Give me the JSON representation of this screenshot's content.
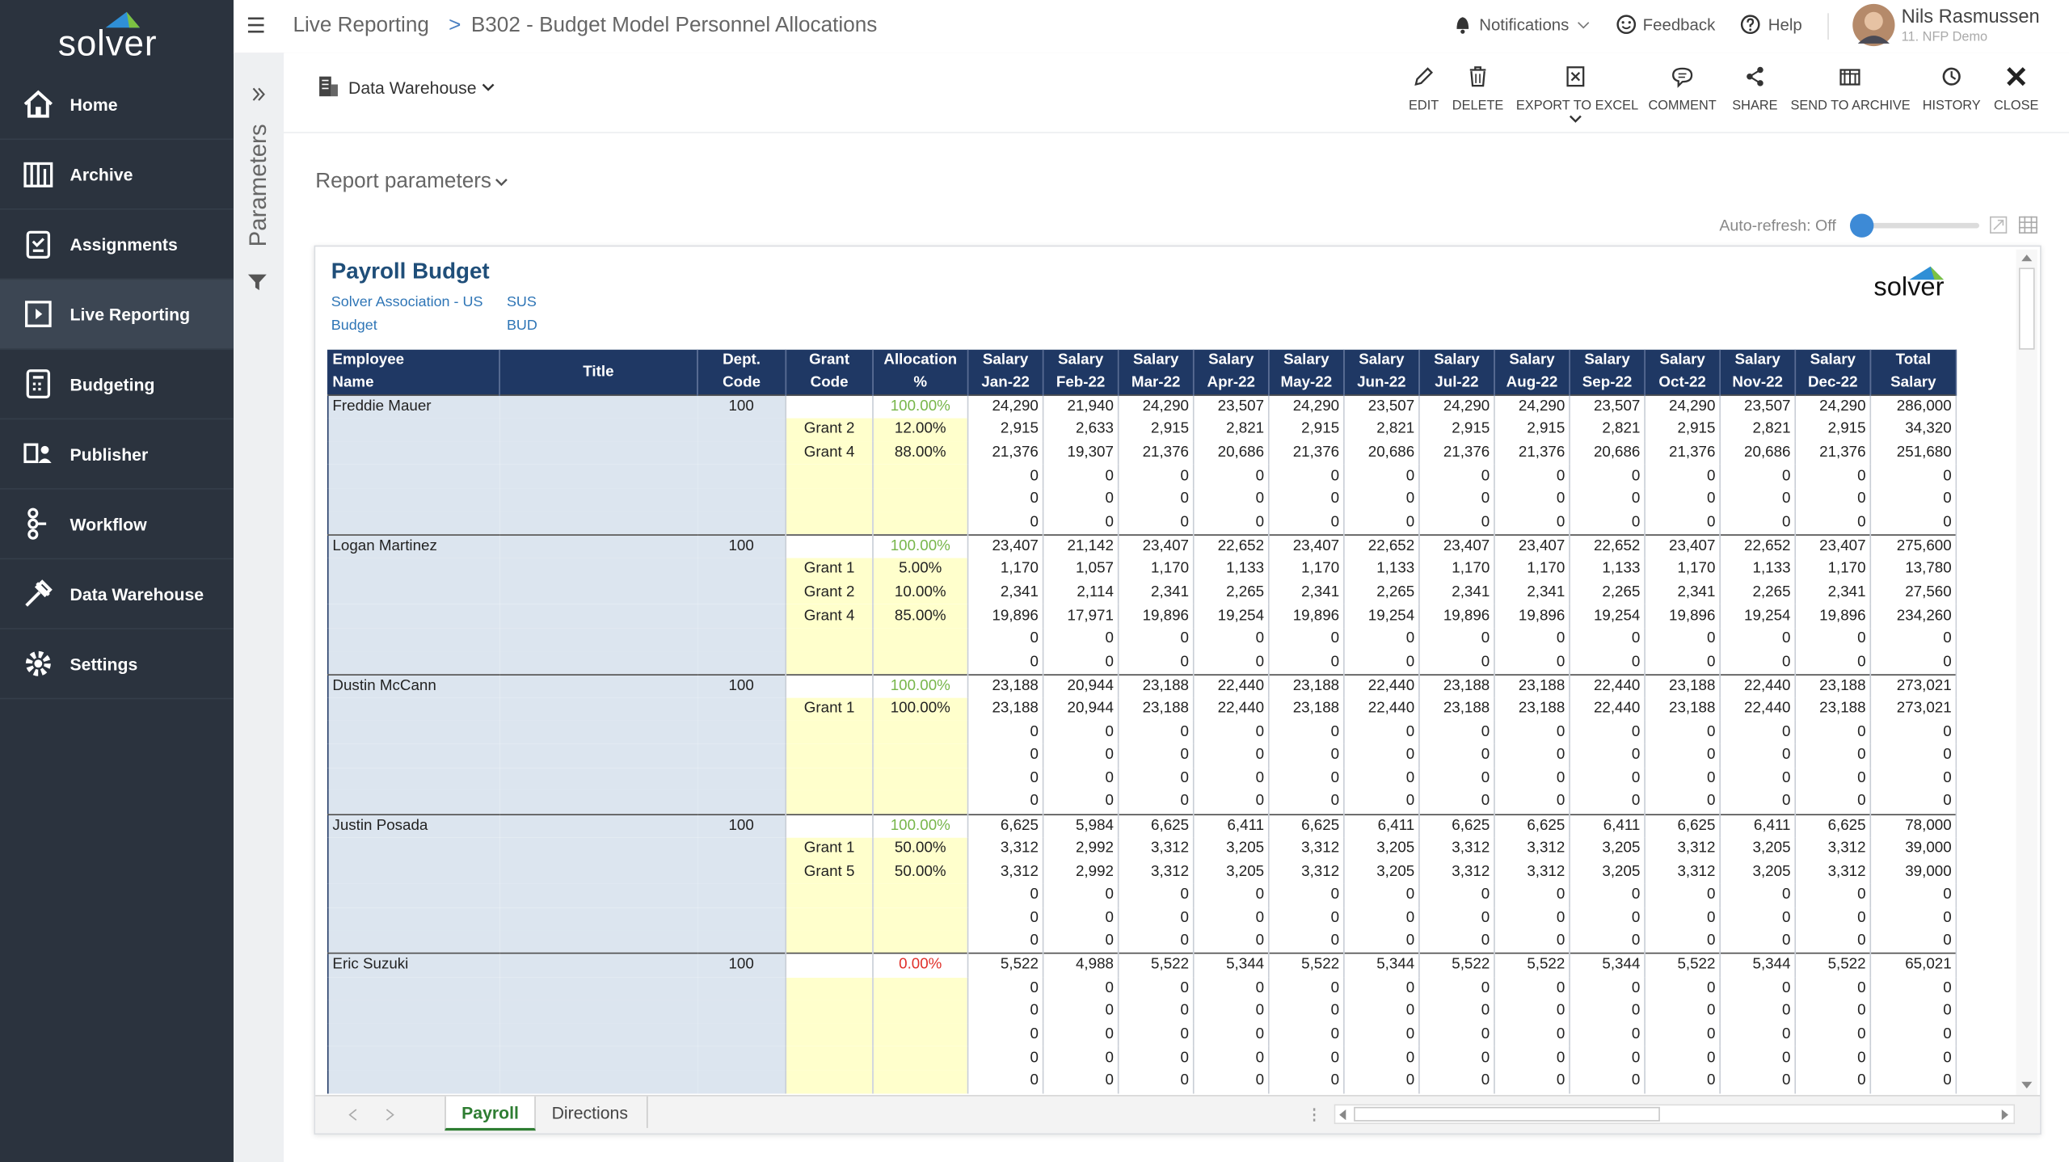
{
  "sidebar": {
    "logo": "solver",
    "items": [
      "Home",
      "Archive",
      "Assignments",
      "Live Reporting",
      "Budgeting",
      "Publisher",
      "Workflow",
      "Data Warehouse",
      "Settings"
    ]
  },
  "topbar": {
    "breadcrumb": [
      "Live Reporting",
      "B302 - Budget Model Personnel Allocations"
    ],
    "separator": ">",
    "notifications": "Notifications",
    "feedback": "Feedback",
    "help": "Help",
    "user": "Nils Rasmussen",
    "org": "11. NFP Demo"
  },
  "toolbar": {
    "source": "Data Warehouse",
    "actions": [
      "EDIT",
      "DELETE",
      "EXPORT TO EXCEL",
      "COMMENT",
      "SHARE",
      "SEND TO ARCHIVE",
      "HISTORY",
      "CLOSE"
    ]
  },
  "parameters_label": "Parameters",
  "report_parameters": "Report parameters",
  "auto_refresh": "Auto-refresh: Off",
  "report": {
    "title": "Payroll Budget",
    "logo": "solver",
    "meta": [
      [
        "Solver Association - US",
        "SUS"
      ],
      [
        "Budget",
        "BUD"
      ]
    ],
    "headers": [
      [
        "Employee",
        "Name"
      ],
      [
        "Title"
      ],
      [
        "Dept.",
        "Code"
      ],
      [
        "Grant",
        "Code"
      ],
      [
        "Allocation",
        "%"
      ],
      [
        "Salary",
        "Jan-22"
      ],
      [
        "Salary",
        "Feb-22"
      ],
      [
        "Salary",
        "Mar-22"
      ],
      [
        "Salary",
        "Apr-22"
      ],
      [
        "Salary",
        "May-22"
      ],
      [
        "Salary",
        "Jun-22"
      ],
      [
        "Salary",
        "Jul-22"
      ],
      [
        "Salary",
        "Aug-22"
      ],
      [
        "Salary",
        "Sep-22"
      ],
      [
        "Salary",
        "Oct-22"
      ],
      [
        "Salary",
        "Nov-22"
      ],
      [
        "Salary",
        "Dec-22"
      ],
      [
        "Total",
        "Salary"
      ]
    ],
    "rows": [
      [
        "Freddie Mauer",
        null,
        "100",
        null,
        "100.00%",
        "24,290",
        "21,940",
        "24,290",
        "23,507",
        "24,290",
        "23,507",
        "24,290",
        "24,290",
        "23,507",
        "24,290",
        "23,507",
        "24,290",
        "286,000"
      ],
      [
        null,
        null,
        null,
        "Grant 2",
        "12.00%",
        "2,915",
        "2,633",
        "2,915",
        "2,821",
        "2,915",
        "2,821",
        "2,915",
        "2,915",
        "2,821",
        "2,915",
        "2,821",
        "2,915",
        "34,320"
      ],
      [
        null,
        null,
        null,
        "Grant 4",
        "88.00%",
        "21,376",
        "19,307",
        "21,376",
        "20,686",
        "21,376",
        "20,686",
        "21,376",
        "21,376",
        "20,686",
        "21,376",
        "20,686",
        "21,376",
        "251,680"
      ],
      [
        null,
        null,
        null,
        null,
        null,
        "0",
        "0",
        "0",
        "0",
        "0",
        "0",
        "0",
        "0",
        "0",
        "0",
        "0",
        "0",
        "0"
      ],
      [
        null,
        null,
        null,
        null,
        null,
        "0",
        "0",
        "0",
        "0",
        "0",
        "0",
        "0",
        "0",
        "0",
        "0",
        "0",
        "0",
        "0"
      ],
      [
        null,
        null,
        null,
        null,
        null,
        "0",
        "0",
        "0",
        "0",
        "0",
        "0",
        "0",
        "0",
        "0",
        "0",
        "0",
        "0",
        "0"
      ],
      [
        "Logan Martinez",
        null,
        "100",
        null,
        "100.00%",
        "23,407",
        "21,142",
        "23,407",
        "22,652",
        "23,407",
        "22,652",
        "23,407",
        "23,407",
        "22,652",
        "23,407",
        "22,652",
        "23,407",
        "275,600"
      ],
      [
        null,
        null,
        null,
        "Grant 1",
        "5.00%",
        "1,170",
        "1,057",
        "1,170",
        "1,133",
        "1,170",
        "1,133",
        "1,170",
        "1,170",
        "1,133",
        "1,170",
        "1,133",
        "1,170",
        "13,780"
      ],
      [
        null,
        null,
        null,
        "Grant 2",
        "10.00%",
        "2,341",
        "2,114",
        "2,341",
        "2,265",
        "2,341",
        "2,265",
        "2,341",
        "2,341",
        "2,265",
        "2,341",
        "2,265",
        "2,341",
        "27,560"
      ],
      [
        null,
        null,
        null,
        "Grant 4",
        "85.00%",
        "19,896",
        "17,971",
        "19,896",
        "19,254",
        "19,896",
        "19,254",
        "19,896",
        "19,896",
        "19,254",
        "19,896",
        "19,254",
        "19,896",
        "234,260"
      ],
      [
        null,
        null,
        null,
        null,
        null,
        "0",
        "0",
        "0",
        "0",
        "0",
        "0",
        "0",
        "0",
        "0",
        "0",
        "0",
        "0",
        "0"
      ],
      [
        null,
        null,
        null,
        null,
        null,
        "0",
        "0",
        "0",
        "0",
        "0",
        "0",
        "0",
        "0",
        "0",
        "0",
        "0",
        "0",
        "0"
      ],
      [
        "Dustin McCann",
        null,
        "100",
        null,
        "100.00%",
        "23,188",
        "20,944",
        "23,188",
        "22,440",
        "23,188",
        "22,440",
        "23,188",
        "23,188",
        "22,440",
        "23,188",
        "22,440",
        "23,188",
        "273,021"
      ],
      [
        null,
        null,
        null,
        "Grant 1",
        "100.00%",
        "23,188",
        "20,944",
        "23,188",
        "22,440",
        "23,188",
        "22,440",
        "23,188",
        "23,188",
        "22,440",
        "23,188",
        "22,440",
        "23,188",
        "273,021"
      ],
      [
        null,
        null,
        null,
        null,
        null,
        "0",
        "0",
        "0",
        "0",
        "0",
        "0",
        "0",
        "0",
        "0",
        "0",
        "0",
        "0",
        "0"
      ],
      [
        null,
        null,
        null,
        null,
        null,
        "0",
        "0",
        "0",
        "0",
        "0",
        "0",
        "0",
        "0",
        "0",
        "0",
        "0",
        "0",
        "0"
      ],
      [
        null,
        null,
        null,
        null,
        null,
        "0",
        "0",
        "0",
        "0",
        "0",
        "0",
        "0",
        "0",
        "0",
        "0",
        "0",
        "0",
        "0"
      ],
      [
        null,
        null,
        null,
        null,
        null,
        "0",
        "0",
        "0",
        "0",
        "0",
        "0",
        "0",
        "0",
        "0",
        "0",
        "0",
        "0",
        "0"
      ],
      [
        "Justin Posada",
        null,
        "100",
        null,
        "100.00%",
        "6,625",
        "5,984",
        "6,625",
        "6,411",
        "6,625",
        "6,411",
        "6,625",
        "6,625",
        "6,411",
        "6,625",
        "6,411",
        "6,625",
        "78,000"
      ],
      [
        null,
        null,
        null,
        "Grant 1",
        "50.00%",
        "3,312",
        "2,992",
        "3,312",
        "3,205",
        "3,312",
        "3,205",
        "3,312",
        "3,312",
        "3,205",
        "3,312",
        "3,205",
        "3,312",
        "39,000"
      ],
      [
        null,
        null,
        null,
        "Grant 5",
        "50.00%",
        "3,312",
        "2,992",
        "3,312",
        "3,205",
        "3,312",
        "3,205",
        "3,312",
        "3,312",
        "3,205",
        "3,312",
        "3,205",
        "3,312",
        "39,000"
      ],
      [
        null,
        null,
        null,
        null,
        null,
        "0",
        "0",
        "0",
        "0",
        "0",
        "0",
        "0",
        "0",
        "0",
        "0",
        "0",
        "0",
        "0"
      ],
      [
        null,
        null,
        null,
        null,
        null,
        "0",
        "0",
        "0",
        "0",
        "0",
        "0",
        "0",
        "0",
        "0",
        "0",
        "0",
        "0",
        "0"
      ],
      [
        null,
        null,
        null,
        null,
        null,
        "0",
        "0",
        "0",
        "0",
        "0",
        "0",
        "0",
        "0",
        "0",
        "0",
        "0",
        "0",
        "0"
      ],
      [
        "Eric Suzuki",
        null,
        "100",
        null,
        "0.00%",
        "5,522",
        "4,988",
        "5,522",
        "5,344",
        "5,522",
        "5,344",
        "5,522",
        "5,522",
        "5,344",
        "5,522",
        "5,344",
        "5,522",
        "65,021"
      ],
      [
        null,
        null,
        null,
        null,
        null,
        "0",
        "0",
        "0",
        "0",
        "0",
        "0",
        "0",
        "0",
        "0",
        "0",
        "0",
        "0",
        "0"
      ],
      [
        null,
        null,
        null,
        null,
        null,
        "0",
        "0",
        "0",
        "0",
        "0",
        "0",
        "0",
        "0",
        "0",
        "0",
        "0",
        "0",
        "0"
      ],
      [
        null,
        null,
        null,
        null,
        null,
        "0",
        "0",
        "0",
        "0",
        "0",
        "0",
        "0",
        "0",
        "0",
        "0",
        "0",
        "0",
        "0"
      ],
      [
        null,
        null,
        null,
        null,
        null,
        "0",
        "0",
        "0",
        "0",
        "0",
        "0",
        "0",
        "0",
        "0",
        "0",
        "0",
        "0",
        "0"
      ],
      [
        null,
        null,
        null,
        null,
        null,
        "0",
        "0",
        "0",
        "0",
        "0",
        "0",
        "0",
        "0",
        "0",
        "0",
        "0",
        "0",
        "0"
      ]
    ]
  },
  "tabs": [
    "Payroll",
    "Directions"
  ]
}
